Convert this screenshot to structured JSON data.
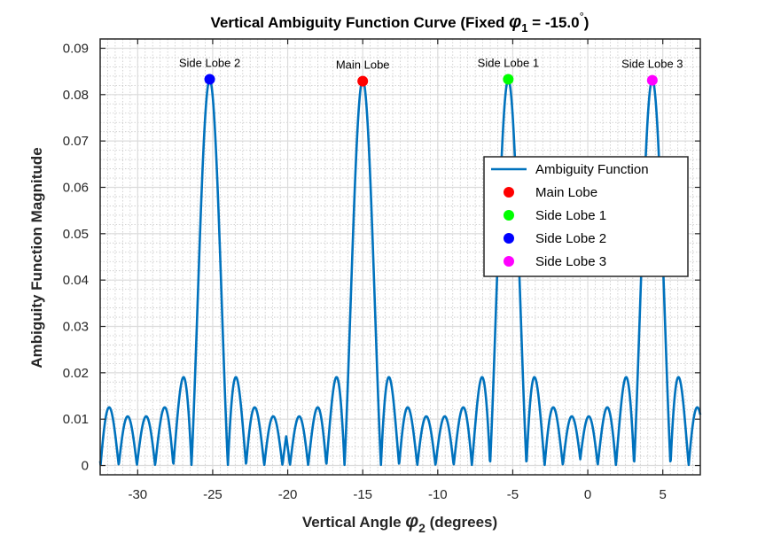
{
  "chart_data": {
    "type": "line",
    "title": {
      "main": "Vertical Ambiguity Function Curve (Fixed ",
      "symbol": "φ",
      "sub": "1",
      "tail": " = -15.0",
      "degree": "°",
      "close": ")"
    },
    "xlabel": {
      "main": "Vertical Angle ",
      "symbol": "φ",
      "sub": "2",
      "tail": " (degrees)"
    },
    "ylabel": "Ambiguity Function Magnitude",
    "xlim": [
      -32.5,
      7.5
    ],
    "ylim": [
      -0.002,
      0.092
    ],
    "xticks": [
      -30,
      -25,
      -20,
      -15,
      -10,
      -5,
      0,
      5
    ],
    "xtick_labels": [
      "-30",
      "-25",
      "-20",
      "-15",
      "-10",
      "-5",
      "0",
      "5"
    ],
    "yticks": [
      0,
      0.01,
      0.02,
      0.03,
      0.04,
      0.05,
      0.06,
      0.07,
      0.08,
      0.09
    ],
    "ytick_labels": [
      "0",
      "0.01",
      "0.02",
      "0.03",
      "0.04",
      "0.05",
      "0.06",
      "0.07",
      "0.08",
      "0.09"
    ],
    "grid": true,
    "legend_position": "top-right",
    "series": [
      {
        "name": "Ambiguity Function",
        "color": "#0072BD",
        "model": "periodic sinc lattice",
        "peak_value": 0.0832,
        "period_deg": 9.7,
        "peak_centers": [
          -25.2,
          -15.0,
          -5.3,
          4.3
        ],
        "lobes_per_period": 8,
        "x_range": [
          -32.5,
          7.5
        ]
      }
    ],
    "markers": [
      {
        "name": "Main Lobe",
        "x": -15.0,
        "y": 0.0829,
        "color": "#FF0000",
        "label": "Main Lobe"
      },
      {
        "name": "Side Lobe 1",
        "x": -5.3,
        "y": 0.0833,
        "color": "#00FF00",
        "label": "Side Lobe 1"
      },
      {
        "name": "Side Lobe 2",
        "x": -25.2,
        "y": 0.0833,
        "color": "#0000FF",
        "label": "Side Lobe 2"
      },
      {
        "name": "Side Lobe 3",
        "x": 4.3,
        "y": 0.0831,
        "color": "#FF00FF",
        "label": "Side Lobe 3"
      }
    ],
    "legend": [
      {
        "label": "Ambiguity Function",
        "kind": "line",
        "color": "#0072BD"
      },
      {
        "label": "Main Lobe",
        "kind": "marker",
        "color": "#FF0000"
      },
      {
        "label": "Side Lobe 1",
        "kind": "marker",
        "color": "#00FF00"
      },
      {
        "label": "Side Lobe 2",
        "kind": "marker",
        "color": "#0000FF"
      },
      {
        "label": "Side Lobe 3",
        "kind": "marker",
        "color": "#FF00FF"
      }
    ]
  }
}
